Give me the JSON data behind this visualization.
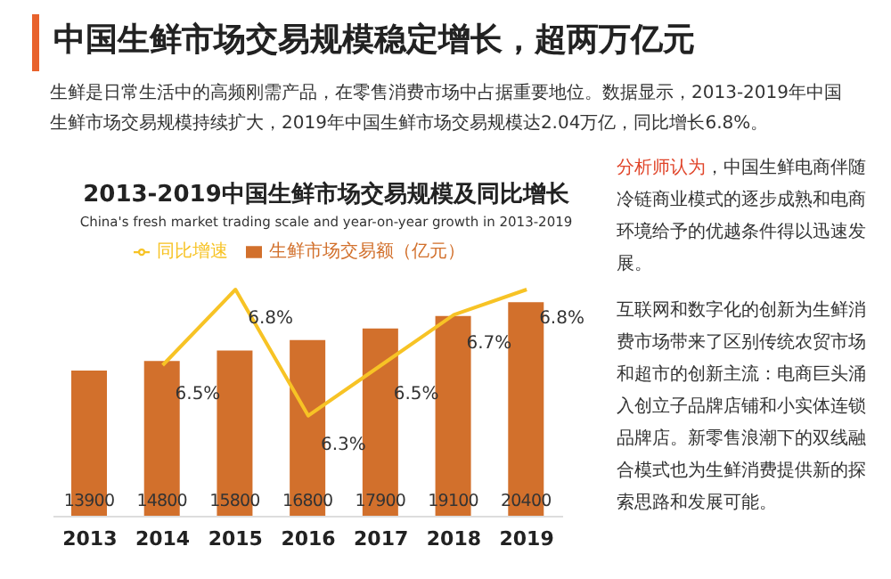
{
  "chart_data": {
    "type": "bar",
    "title": "2013-2019中国生鲜市场交易规模及同比增长",
    "subtitle": "China's fresh market trading scale and year-on-year growth in 2013-2019",
    "categories": [
      "2013",
      "2014",
      "2015",
      "2016",
      "2017",
      "2018",
      "2019"
    ],
    "series": [
      {
        "name": "生鲜市场交易额（亿元）",
        "color": "#d2702c",
        "values": [
          13900,
          14800,
          15800,
          16800,
          17900,
          19100,
          20400
        ]
      },
      {
        "name": "同比增速",
        "type": "line",
        "axis": "y2",
        "color": "#f7c325",
        "values": [
          null,
          6.5,
          6.8,
          6.3,
          6.5,
          6.7,
          6.8
        ],
        "value_labels": [
          null,
          "6.5%",
          "6.8%",
          "6.3%",
          "6.5%",
          "6.7%",
          "6.8%"
        ]
      }
    ],
    "tick_labels": "x",
    "data_labels": true,
    "legend": "top",
    "grid": false,
    "marker": "none",
    "line_style": "solid",
    "annotations": [
      "中国生鲜市场交易规模稳定增长，超两万亿元",
      "生鲜是日常生活中的高频刚需产品，在零售消费市场中占据重要地位。数据显示，2013-2019年中国生鲜市场交易规模持续扩大，2019年中国生鲜市场交易规模达2.04万亿，同比增长6.8%。",
      "分析师认为",
      "，中国生鲜电商伴随冷链商业模式的逐步成熟和电商环境给予的优越条件得以迅速发展。",
      "互联网和数字化的创新为生鲜消费市场带来了区别传统农贸市场和超市的创新主流：电商巨头涌入创立子品牌店铺和小实体连锁品牌店。新零售浪潮下的双线融合模式也为生鲜消费提供新的探索思路和发展可能。"
    ]
  }
}
